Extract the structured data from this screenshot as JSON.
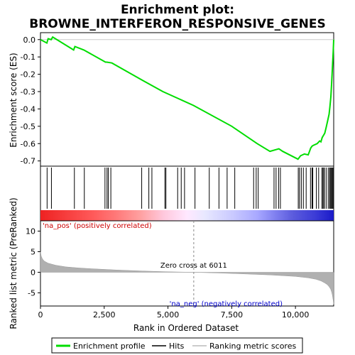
{
  "chart_data": {
    "type": "line",
    "title_line1": "Enrichment plot:",
    "title_line2": "BROWNE_INTERFERON_RESPONSIVE_GENES",
    "xlabel": "Rank in Ordered Dataset",
    "ylabel_top": "Enrichment score (ES)",
    "ylabel_bottom": "Ranked list metric (PreRanked)",
    "xlim": [
      0,
      11500
    ],
    "es_ylim": [
      -0.73,
      0.04
    ],
    "metric_ylim": [
      -8.2,
      12.5
    ],
    "x_ticks": [
      {
        "value": 0,
        "label": "0"
      },
      {
        "value": 2500,
        "label": "2,500"
      },
      {
        "value": 5000,
        "label": "5,000"
      },
      {
        "value": 7500,
        "label": "7,500"
      },
      {
        "value": 10000,
        "label": "10,000"
      }
    ],
    "es_ticks": [
      {
        "value": 0.0,
        "label": "0.0"
      },
      {
        "value": -0.1,
        "label": "-0.1"
      },
      {
        "value": -0.2,
        "label": "-0.2"
      },
      {
        "value": -0.3,
        "label": "-0.3"
      },
      {
        "value": -0.4,
        "label": "-0.4"
      },
      {
        "value": -0.5,
        "label": "-0.5"
      },
      {
        "value": -0.6,
        "label": "-0.6"
      },
      {
        "value": -0.7,
        "label": "-0.7"
      }
    ],
    "metric_ticks": [
      {
        "value": 10,
        "label": "10"
      },
      {
        "value": 5,
        "label": "5"
      },
      {
        "value": 0,
        "label": "0"
      },
      {
        "value": -5,
        "label": "-5"
      }
    ],
    "es_curve": {
      "x": [
        0,
        250,
        300,
        420,
        480,
        1300,
        1350,
        1700,
        2550,
        2600,
        2800,
        4000,
        4800,
        6000,
        7500,
        8500,
        9000,
        9350,
        9500,
        10100,
        10200,
        10350,
        10500,
        10600,
        10650,
        10700,
        10850,
        10950,
        11000,
        11050,
        11150,
        11200,
        11260,
        11320,
        11350,
        11390,
        11420,
        11450,
        11480,
        11500
      ],
      "y": [
        0.0,
        -0.02,
        0.005,
        0.0,
        0.015,
        -0.06,
        -0.04,
        -0.06,
        -0.13,
        -0.13,
        -0.135,
        -0.235,
        -0.3,
        -0.38,
        -0.5,
        -0.6,
        -0.645,
        -0.63,
        -0.645,
        -0.69,
        -0.67,
        -0.66,
        -0.665,
        -0.625,
        -0.615,
        -0.61,
        -0.6,
        -0.585,
        -0.59,
        -0.565,
        -0.54,
        -0.51,
        -0.47,
        -0.43,
        -0.39,
        -0.33,
        -0.25,
        -0.16,
        -0.07,
        0.0
      ]
    },
    "hits": [
      260,
      430,
      1330,
      1720,
      2530,
      2610,
      2660,
      2760,
      3970,
      4250,
      4370,
      4880,
      4920,
      5380,
      5520,
      5650,
      6060,
      6620,
      7000,
      7320,
      7620,
      8360,
      8460,
      8540,
      9160,
      9240,
      9340,
      9410,
      10110,
      10160,
      10230,
      10310,
      10420,
      10590,
      10650,
      10680,
      10820,
      10910,
      11040,
      11080,
      11100,
      11150,
      11220,
      11300,
      11340,
      11380,
      11410,
      11440,
      11470
    ],
    "metric_curve": {
      "x": [
        0,
        30,
        80,
        150,
        300,
        600,
        1000,
        1500,
        2000,
        3000,
        4000,
        5000,
        6011,
        7000,
        8000,
        9000,
        10000,
        10500,
        10800,
        11000,
        11150,
        11250,
        11320,
        11380,
        11420,
        11450,
        11480,
        11500
      ],
      "y": [
        5.0,
        3.9,
        3.2,
        2.7,
        2.2,
        1.7,
        1.3,
        1.05,
        0.85,
        0.55,
        0.3,
        0.12,
        0.0,
        -0.18,
        -0.4,
        -0.65,
        -1.0,
        -1.35,
        -1.7,
        -2.1,
        -2.6,
        -3.0,
        -3.5,
        -4.1,
        -4.8,
        -5.6,
        -6.8,
        -7.8
      ]
    },
    "zero_cross_value": 6011,
    "zero_cross_label": "Zero cross at 6011",
    "pos_label": "'na_pos' (positively correlated)",
    "neg_label": "'na_neg' (negatively correlated)",
    "legend": [
      {
        "label": "Enrichment profile",
        "color": "#00dd00"
      },
      {
        "label": "Hits",
        "color": "#000000"
      },
      {
        "label": "Ranking metric scores",
        "color": "#bbbbbb"
      }
    ],
    "colors": {
      "es_line": "#00dd00",
      "pos_text": "#cc0000",
      "neg_text": "#0000cc",
      "metric_fill": "#b0b0b0",
      "zero_line": "#888888"
    }
  }
}
